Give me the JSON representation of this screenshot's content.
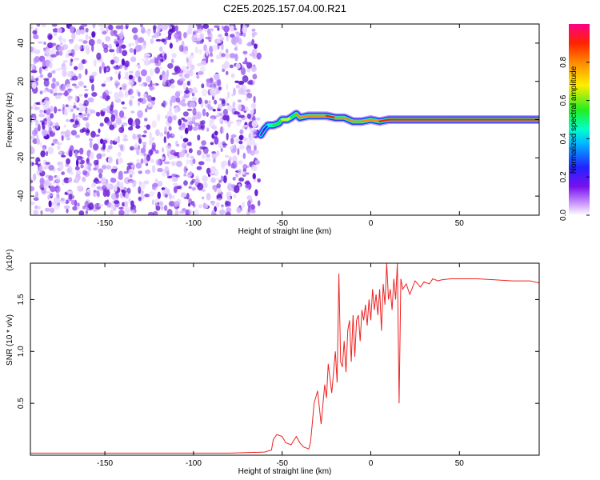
{
  "title": "C2E5.2025.157.04.00.R21",
  "chart_data": [
    {
      "type": "heatmap",
      "xlabel": "Height of straight line (km)",
      "ylabel": "Frequency (Hz)",
      "xlim": [
        -192,
        95
      ],
      "ylim": [
        -50,
        50
      ],
      "xticks": [
        -150,
        -100,
        -50,
        0,
        50
      ],
      "yticks": [
        -40,
        -20,
        0,
        20,
        40
      ],
      "colorbar": {
        "label": "Normalized spectral amplitude",
        "ticks": [
          "0.0",
          "0.2",
          "0.4",
          "0.6",
          "0.8"
        ],
        "range": [
          0,
          1
        ]
      },
      "noise_region_x": [
        -192,
        -63
      ],
      "signal_trace": {
        "x": [
          -62,
          -60,
          -58,
          -55,
          -52,
          -50,
          -47,
          -45,
          -42,
          -40,
          -35,
          -30,
          -25,
          -20,
          -15,
          -10,
          -5,
          0,
          5,
          10,
          20,
          40,
          60,
          80,
          95
        ],
        "frequency": [
          -8,
          -5,
          -3,
          -3,
          -2,
          0,
          0,
          1,
          3,
          1,
          2,
          2,
          2,
          1,
          1,
          -1,
          -1,
          0,
          -1,
          0,
          0,
          0,
          0,
          0,
          0
        ],
        "amplitude": [
          0.2,
          0.3,
          0.5,
          0.6,
          0.55,
          0.7,
          0.75,
          0.6,
          0.8,
          0.85,
          0.8,
          0.85,
          0.9,
          0.85,
          0.8,
          0.85,
          0.8,
          0.85,
          0.9,
          0.95,
          0.95,
          0.95,
          0.95,
          0.95,
          0.95
        ]
      }
    },
    {
      "type": "line",
      "xlabel": "Height of straight line (km)",
      "ylabel": "SNR (10 * v/v)",
      "scale_label": "(x10⁴)",
      "xlim": [
        -192,
        95
      ],
      "ylim": [
        0,
        1.85
      ],
      "xticks": [
        -150,
        -100,
        -50,
        0,
        50
      ],
      "yticks": [
        "0.5",
        "1.0",
        "1.5"
      ],
      "color": "#ee2222",
      "series": [
        {
          "x": [
            -192,
            -170,
            -150,
            -120,
            -100,
            -80,
            -60,
            -56,
            -55,
            -53,
            -50,
            -48,
            -45,
            -42,
            -40,
            -38,
            -35,
            -34,
            -33,
            -32,
            -30,
            -28,
            -26,
            -25,
            -24,
            -22,
            -20,
            -19,
            -18,
            -17,
            -16,
            -15,
            -14,
            -13,
            -12,
            -11,
            -10,
            -9,
            -8,
            -7,
            -6,
            -5,
            -4,
            -3,
            -2,
            -1,
            0,
            1,
            2,
            3,
            4,
            5,
            6,
            7,
            8,
            9,
            10,
            11,
            12,
            13,
            14,
            15,
            16,
            17,
            18,
            20,
            22,
            25,
            28,
            30,
            33,
            35,
            38,
            40,
            45,
            50,
            60,
            70,
            80,
            90,
            95
          ],
          "y": [
            0.02,
            0.02,
            0.02,
            0.02,
            0.02,
            0.02,
            0.03,
            0.05,
            0.15,
            0.2,
            0.18,
            0.12,
            0.1,
            0.18,
            0.12,
            0.08,
            0.06,
            0.12,
            0.3,
            0.5,
            0.62,
            0.3,
            0.68,
            0.55,
            0.88,
            0.6,
            1.0,
            0.7,
            1.75,
            0.9,
            0.85,
            1.1,
            0.8,
            1.2,
            1.3,
            0.9,
            1.35,
            0.95,
            1.3,
            1.35,
            1.1,
            1.4,
            1.3,
            1.45,
            1.25,
            1.5,
            1.3,
            1.6,
            1.4,
            1.55,
            1.35,
            1.6,
            1.2,
            1.65,
            1.45,
            1.85,
            1.5,
            1.6,
            1.4,
            1.7,
            1.5,
            1.85,
            0.5,
            1.7,
            1.6,
            1.65,
            1.55,
            1.68,
            1.62,
            1.67,
            1.65,
            1.7,
            1.68,
            1.69,
            1.7,
            1.7,
            1.7,
            1.69,
            1.68,
            1.68,
            1.66
          ]
        }
      ]
    }
  ]
}
